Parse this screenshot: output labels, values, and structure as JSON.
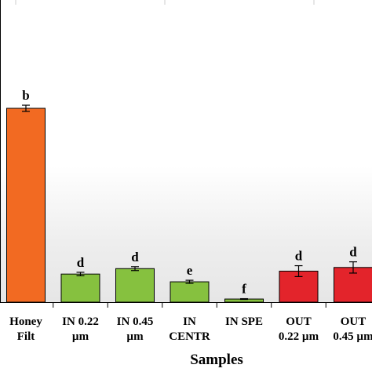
{
  "chart_data": {
    "type": "bar",
    "title": "",
    "xlabel": "Samples",
    "ylabel": "",
    "categories": [
      [
        "Honey",
        "Filt"
      ],
      [
        "IN 0.22",
        "µm"
      ],
      [
        "IN 0.45",
        "µm"
      ],
      [
        "IN",
        "CENTR"
      ],
      [
        "IN SPE"
      ],
      [
        "OUT",
        "0.22 µm"
      ],
      [
        "OUT",
        "0.45 µm"
      ]
    ],
    "values": [
      100,
      14.5,
      17.3,
      10.5,
      1.6,
      16.0,
      17.9
    ],
    "errors": [
      1.6,
      0.9,
      1.0,
      0.8,
      0.2,
      2.8,
      2.9
    ],
    "letters": [
      "b",
      "d",
      "d",
      "e",
      "f",
      "d",
      "d"
    ],
    "colors": [
      "#f26a22",
      "#86c13f",
      "#86c13f",
      "#86c13f",
      "#86c13f",
      "#e3242b",
      "#e3242b"
    ],
    "ylim": [
      0,
      150
    ],
    "grid": false,
    "legend": "none"
  }
}
